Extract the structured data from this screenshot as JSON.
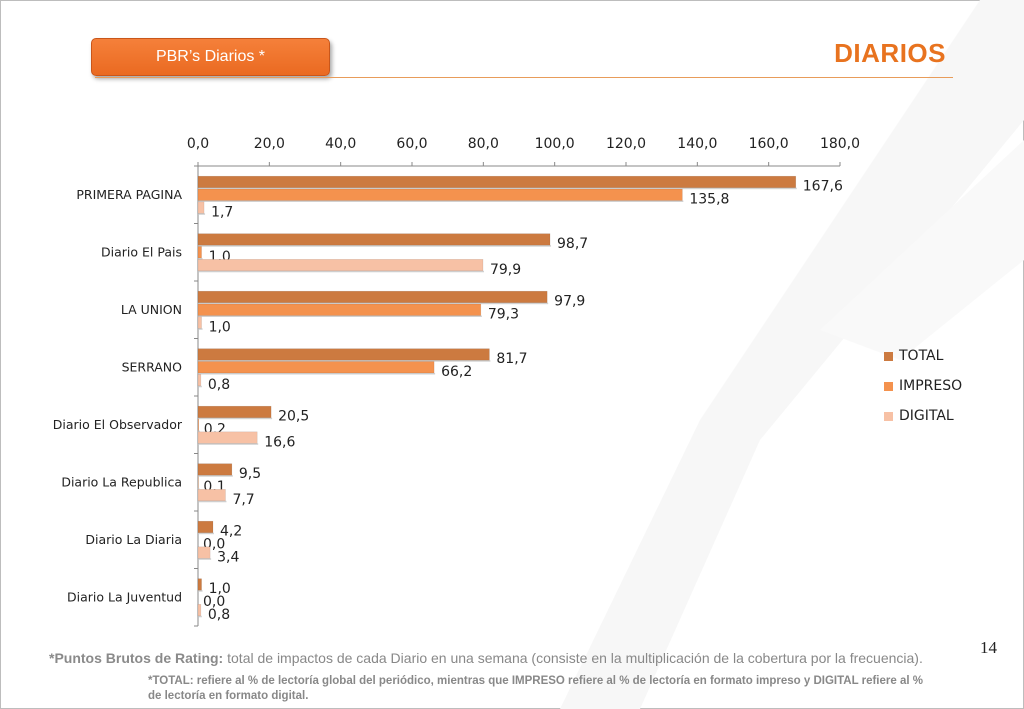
{
  "header": {
    "tag_label": "PBR’s Diarios  *",
    "section_title": "DIARIOS"
  },
  "page_number": "14",
  "footnote": {
    "bold_part": "*Puntos Brutos de Rating:",
    "text_part": " total de impactos de cada Diario en una semana (consiste en la multiplicación de la cobertura por la frecuencia).",
    "note": "*TOTAL: refiere al % de lectoría global del periódico, mientras que IMPRESO refiere al % de lectoría en formato impreso y DIGITAL refiere al % de lectoría en formato digital."
  },
  "colors": {
    "accent": "#e8731f",
    "total": "#cc7a40",
    "impreso": "#f4924e",
    "digital": "#f7c1a5"
  },
  "chart_data": {
    "type": "bar",
    "orientation": "horizontal",
    "x_axis_position": "top",
    "xlim": [
      0,
      180
    ],
    "ticks": [
      "0,0",
      "20,0",
      "40,0",
      "60,0",
      "80,0",
      "100,0",
      "120,0",
      "140,0",
      "160,0",
      "180,0"
    ],
    "tick_values": [
      0,
      20,
      40,
      60,
      80,
      100,
      120,
      140,
      160,
      180
    ],
    "grid": false,
    "legend_position": "right",
    "categories": [
      "PRIMERA PAGINA",
      "Diario El Pais",
      "LA UNION",
      "SERRANO",
      "Diario El Observador",
      "Diario La Republica",
      "Diario La Diaria",
      "Diario La Juventud"
    ],
    "series": [
      {
        "name": "TOTAL",
        "color": "#cc7a40",
        "values": [
          167.6,
          98.7,
          97.9,
          81.7,
          20.5,
          9.5,
          4.2,
          1.0
        ],
        "labels": [
          "167,6",
          "98,7",
          "97,9",
          "81,7",
          "20,5",
          "9,5",
          "4,2",
          "1,0"
        ]
      },
      {
        "name": "IMPRESO",
        "color": "#f4924e",
        "values": [
          135.8,
          1.0,
          79.3,
          66.2,
          0.2,
          0.1,
          0.0,
          0.0
        ],
        "labels": [
          "135,8",
          "1,0",
          "79,3",
          "66,2",
          "0,2",
          "0,1",
          "0,0",
          "0,0"
        ]
      },
      {
        "name": "DIGITAL",
        "color": "#f7c1a5",
        "values": [
          1.7,
          79.9,
          1.0,
          0.8,
          16.6,
          7.7,
          3.4,
          0.8
        ],
        "labels": [
          "1,7",
          "79,9",
          "1,0",
          "0,8",
          "16,6",
          "7,7",
          "3,4",
          "0,8"
        ]
      }
    ]
  }
}
